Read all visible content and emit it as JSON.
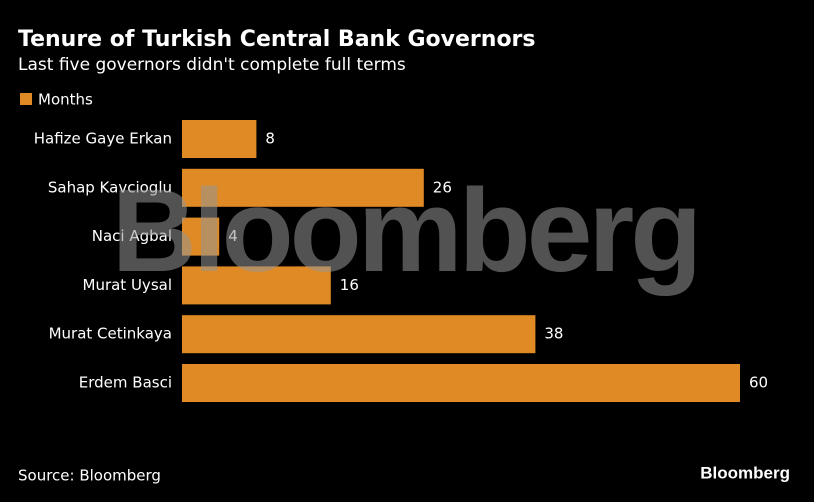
{
  "chart_data": {
    "type": "bar",
    "orientation": "horizontal",
    "title": "Tenure of Turkish Central Bank Governors",
    "subtitle": "Last five governors didn't complete full terms",
    "categories": [
      "Hafize Gaye Erkan",
      "Sahap Kavcioglu",
      "Naci Agbal",
      "Murat Uysal",
      "Murat Cetinkaya",
      "Erdem Basci"
    ],
    "series": [
      {
        "name": "Months",
        "color": "#e08a25",
        "values": [
          8,
          26,
          4,
          16,
          38,
          60
        ]
      }
    ],
    "source": "Source: Bloomberg",
    "watermark": "Bloomberg",
    "logo": "Bloomberg"
  }
}
